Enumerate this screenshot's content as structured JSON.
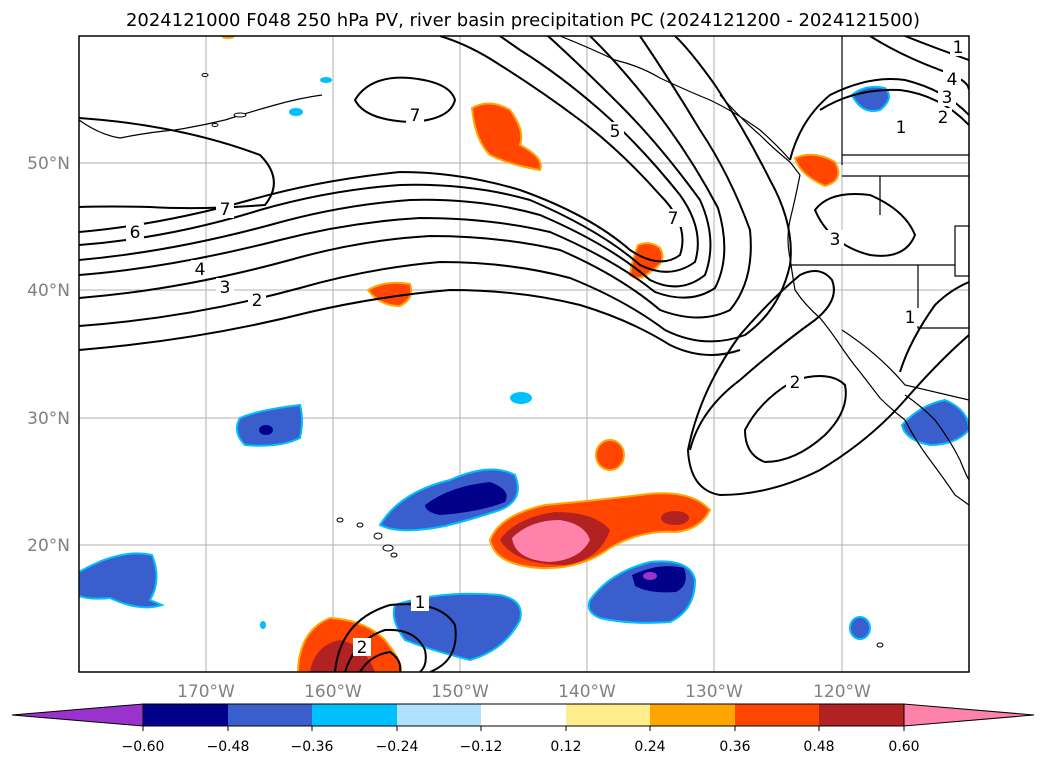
{
  "title": "2024121000 F048 250 hPa PV, river basin precipitation PC (2024121200 - 2024121500)",
  "lat_labels": [
    "50°N",
    "40°N",
    "30°N",
    "20°N"
  ],
  "lon_labels": [
    "170°W",
    "160°W",
    "150°W",
    "140°W",
    "130°W",
    "120°W"
  ],
  "colorbar": {
    "ticks": [
      "−0.60",
      "−0.48",
      "−0.36",
      "−0.24",
      "−0.12",
      "0.12",
      "0.24",
      "0.36",
      "0.48",
      "0.60"
    ],
    "colors": [
      "#9933cc",
      "#00008b",
      "#3a5fcd",
      "#00bfff",
      "#b0e2ff",
      "#ffffff",
      "#ffec8b",
      "#ffa500",
      "#ff4500",
      "#b22222",
      "#ff82ab"
    ]
  },
  "pv_contour_labels": [
    "7",
    "7",
    "6",
    "5",
    "4",
    "3",
    "2",
    "7",
    "1",
    "2",
    "3",
    "4",
    "3",
    "2",
    "1",
    "2",
    "1",
    "1"
  ]
}
